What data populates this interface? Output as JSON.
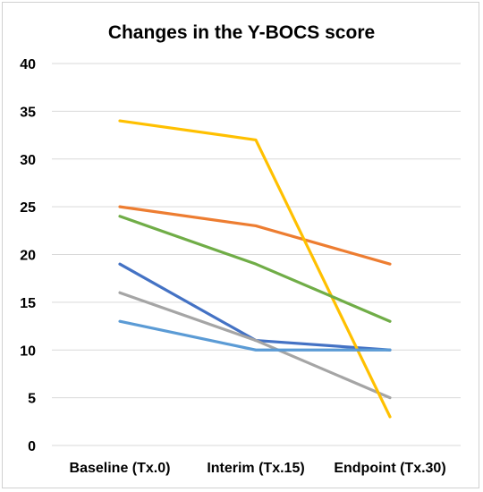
{
  "chart_data": {
    "type": "line",
    "title": "Changes in the Y-BOCS score",
    "xlabel": "",
    "ylabel": "",
    "categories": [
      "Baseline (Tx.0)",
      "Interim (Tx.15)",
      "Endpoint (Tx.30)"
    ],
    "ylim": [
      0,
      40
    ],
    "yticks": [
      0,
      5,
      10,
      15,
      20,
      25,
      30,
      35,
      40
    ],
    "grid": true,
    "legend": "none",
    "series": [
      {
        "color": "#4472c4",
        "values": [
          19,
          11,
          10
        ]
      },
      {
        "color": "#ed7d31",
        "values": [
          25,
          23,
          19
        ]
      },
      {
        "color": "#a5a5a5",
        "values": [
          16,
          11,
          5
        ]
      },
      {
        "color": "#ffc000",
        "values": [
          34,
          32,
          3
        ]
      },
      {
        "color": "#5b9bd5",
        "values": [
          13,
          10,
          10
        ]
      },
      {
        "color": "#70ad47",
        "values": [
          24,
          19,
          13
        ]
      }
    ]
  }
}
